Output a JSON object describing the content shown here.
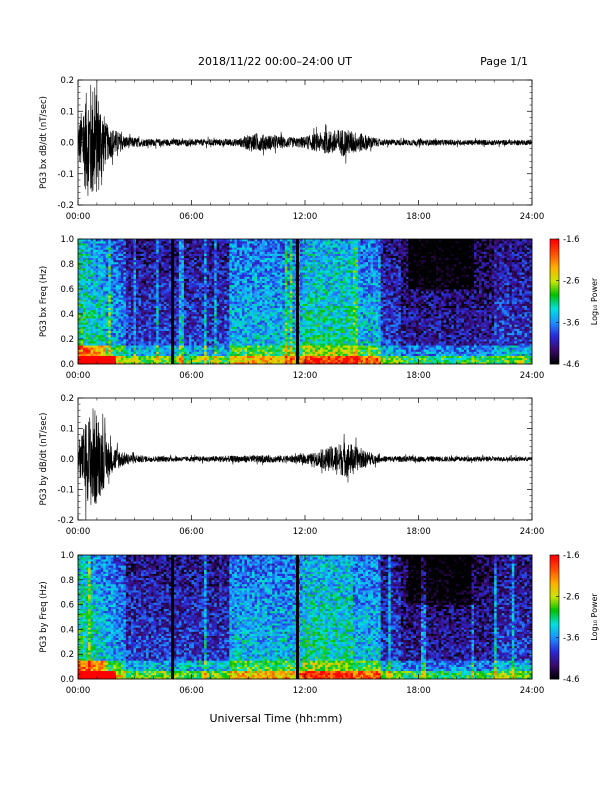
{
  "header": {
    "title": "2018/11/22  00:00–24:00 UT",
    "page": "Page 1/1"
  },
  "footer": {
    "xlabel": "Universal Time (hh:mm)"
  },
  "colorbar": {
    "label": "Log₁₀ Power",
    "ticks": [
      "-1.6",
      "-2.6",
      "-3.6",
      "-4.6"
    ],
    "colors": [
      "#000000",
      "#3a0a6e",
      "#2a2ad6",
      "#1e90ff",
      "#00e0e0",
      "#00c000",
      "#c8e600",
      "#ffb000",
      "#ff5000",
      "#ff0000"
    ]
  },
  "chart_data": [
    {
      "type": "line",
      "ylabel": "PG3 bx dB/dt (nT/sec)",
      "xlim": [
        0,
        24
      ],
      "ylim": [
        -0.2,
        0.2
      ],
      "xticks": [
        "00:00",
        "06:00",
        "12:00",
        "18:00",
        "24:00"
      ],
      "yticks": [
        "0.2",
        "0.1",
        "0.0",
        "-0.1",
        "-0.2"
      ],
      "envelope": [
        {
          "t": 0.0,
          "a": 0.05
        },
        {
          "t": 0.3,
          "a": 0.14
        },
        {
          "t": 0.7,
          "a": 0.2
        },
        {
          "t": 1.1,
          "a": 0.16
        },
        {
          "t": 1.5,
          "a": 0.06
        },
        {
          "t": 2.5,
          "a": 0.02
        },
        {
          "t": 3.5,
          "a": 0.012
        },
        {
          "t": 6.0,
          "a": 0.01
        },
        {
          "t": 8.5,
          "a": 0.012
        },
        {
          "t": 9.2,
          "a": 0.03
        },
        {
          "t": 10.0,
          "a": 0.025
        },
        {
          "t": 11.5,
          "a": 0.015
        },
        {
          "t": 12.0,
          "a": 0.02
        },
        {
          "t": 13.0,
          "a": 0.035
        },
        {
          "t": 14.0,
          "a": 0.045
        },
        {
          "t": 15.0,
          "a": 0.03
        },
        {
          "t": 16.0,
          "a": 0.01
        },
        {
          "t": 24.0,
          "a": 0.008
        }
      ]
    },
    {
      "type": "heatmap",
      "ylabel": "PG3 bx Freq (Hz)",
      "xlim": [
        0,
        24
      ],
      "ylim": [
        0,
        1
      ],
      "xticks": [
        "00:00",
        "06:00",
        "12:00",
        "18:00",
        "24:00"
      ],
      "yticks": [
        "1.0",
        "0.8",
        "0.6",
        "0.4",
        "0.2",
        "0.0"
      ],
      "zlim": [
        -4.6,
        -1.6
      ],
      "gaps": [
        5.0,
        11.6
      ]
    },
    {
      "type": "line",
      "ylabel": "PG3 by dB/dt (nT/sec)",
      "xlim": [
        0,
        24
      ],
      "ylim": [
        -0.2,
        0.2
      ],
      "xticks": [
        "00:00",
        "06:00",
        "12:00",
        "18:00",
        "24:00"
      ],
      "yticks": [
        "0.2",
        "0.1",
        "0.0",
        "-0.1",
        "-0.2"
      ],
      "envelope": [
        {
          "t": 0.0,
          "a": 0.05
        },
        {
          "t": 0.4,
          "a": 0.12
        },
        {
          "t": 0.8,
          "a": 0.18
        },
        {
          "t": 1.2,
          "a": 0.12
        },
        {
          "t": 1.7,
          "a": 0.05
        },
        {
          "t": 2.5,
          "a": 0.02
        },
        {
          "t": 3.5,
          "a": 0.01
        },
        {
          "t": 6.0,
          "a": 0.008
        },
        {
          "t": 9.0,
          "a": 0.012
        },
        {
          "t": 11.5,
          "a": 0.012
        },
        {
          "t": 12.5,
          "a": 0.02
        },
        {
          "t": 13.5,
          "a": 0.045
        },
        {
          "t": 14.2,
          "a": 0.06
        },
        {
          "t": 15.0,
          "a": 0.03
        },
        {
          "t": 16.0,
          "a": 0.01
        },
        {
          "t": 24.0,
          "a": 0.007
        }
      ]
    },
    {
      "type": "heatmap",
      "ylabel": "PG3 by Freq (Hz)",
      "xlim": [
        0,
        24
      ],
      "ylim": [
        0,
        1
      ],
      "xticks": [
        "00:00",
        "06:00",
        "12:00",
        "18:00",
        "24:00"
      ],
      "yticks": [
        "1.0",
        "0.8",
        "0.6",
        "0.4",
        "0.2",
        "0.0"
      ],
      "zlim": [
        -4.6,
        -1.6
      ],
      "gaps": [
        5.0,
        11.6
      ]
    }
  ]
}
